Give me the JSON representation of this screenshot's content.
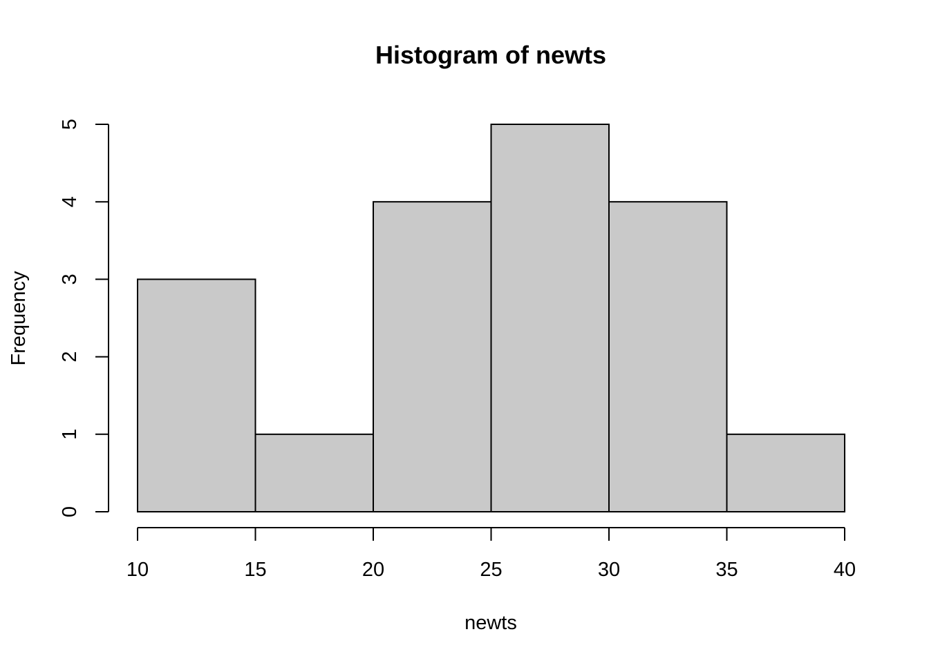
{
  "chart_data": {
    "type": "bar",
    "subtype": "histogram",
    "title": "Histogram of newts",
    "xlabel": "newts",
    "ylabel": "Frequency",
    "bins": [
      {
        "start": 10,
        "end": 15,
        "count": 3
      },
      {
        "start": 15,
        "end": 20,
        "count": 1
      },
      {
        "start": 20,
        "end": 25,
        "count": 4
      },
      {
        "start": 25,
        "end": 30,
        "count": 5
      },
      {
        "start": 30,
        "end": 35,
        "count": 4
      },
      {
        "start": 35,
        "end": 40,
        "count": 1
      }
    ],
    "xlim": [
      10,
      40
    ],
    "ylim": [
      0,
      5
    ],
    "x_ticks": [
      10,
      15,
      20,
      25,
      30,
      35,
      40
    ],
    "x_tick_labels": [
      "10",
      "15",
      "20",
      "25",
      "30",
      "35",
      "40"
    ],
    "y_ticks": [
      0,
      1,
      2,
      3,
      4,
      5
    ],
    "y_tick_labels": [
      "0",
      "1",
      "2",
      "3",
      "4",
      "5"
    ],
    "grid": false,
    "bar_color": "#c9c9c9",
    "edge_color": "#000000"
  }
}
